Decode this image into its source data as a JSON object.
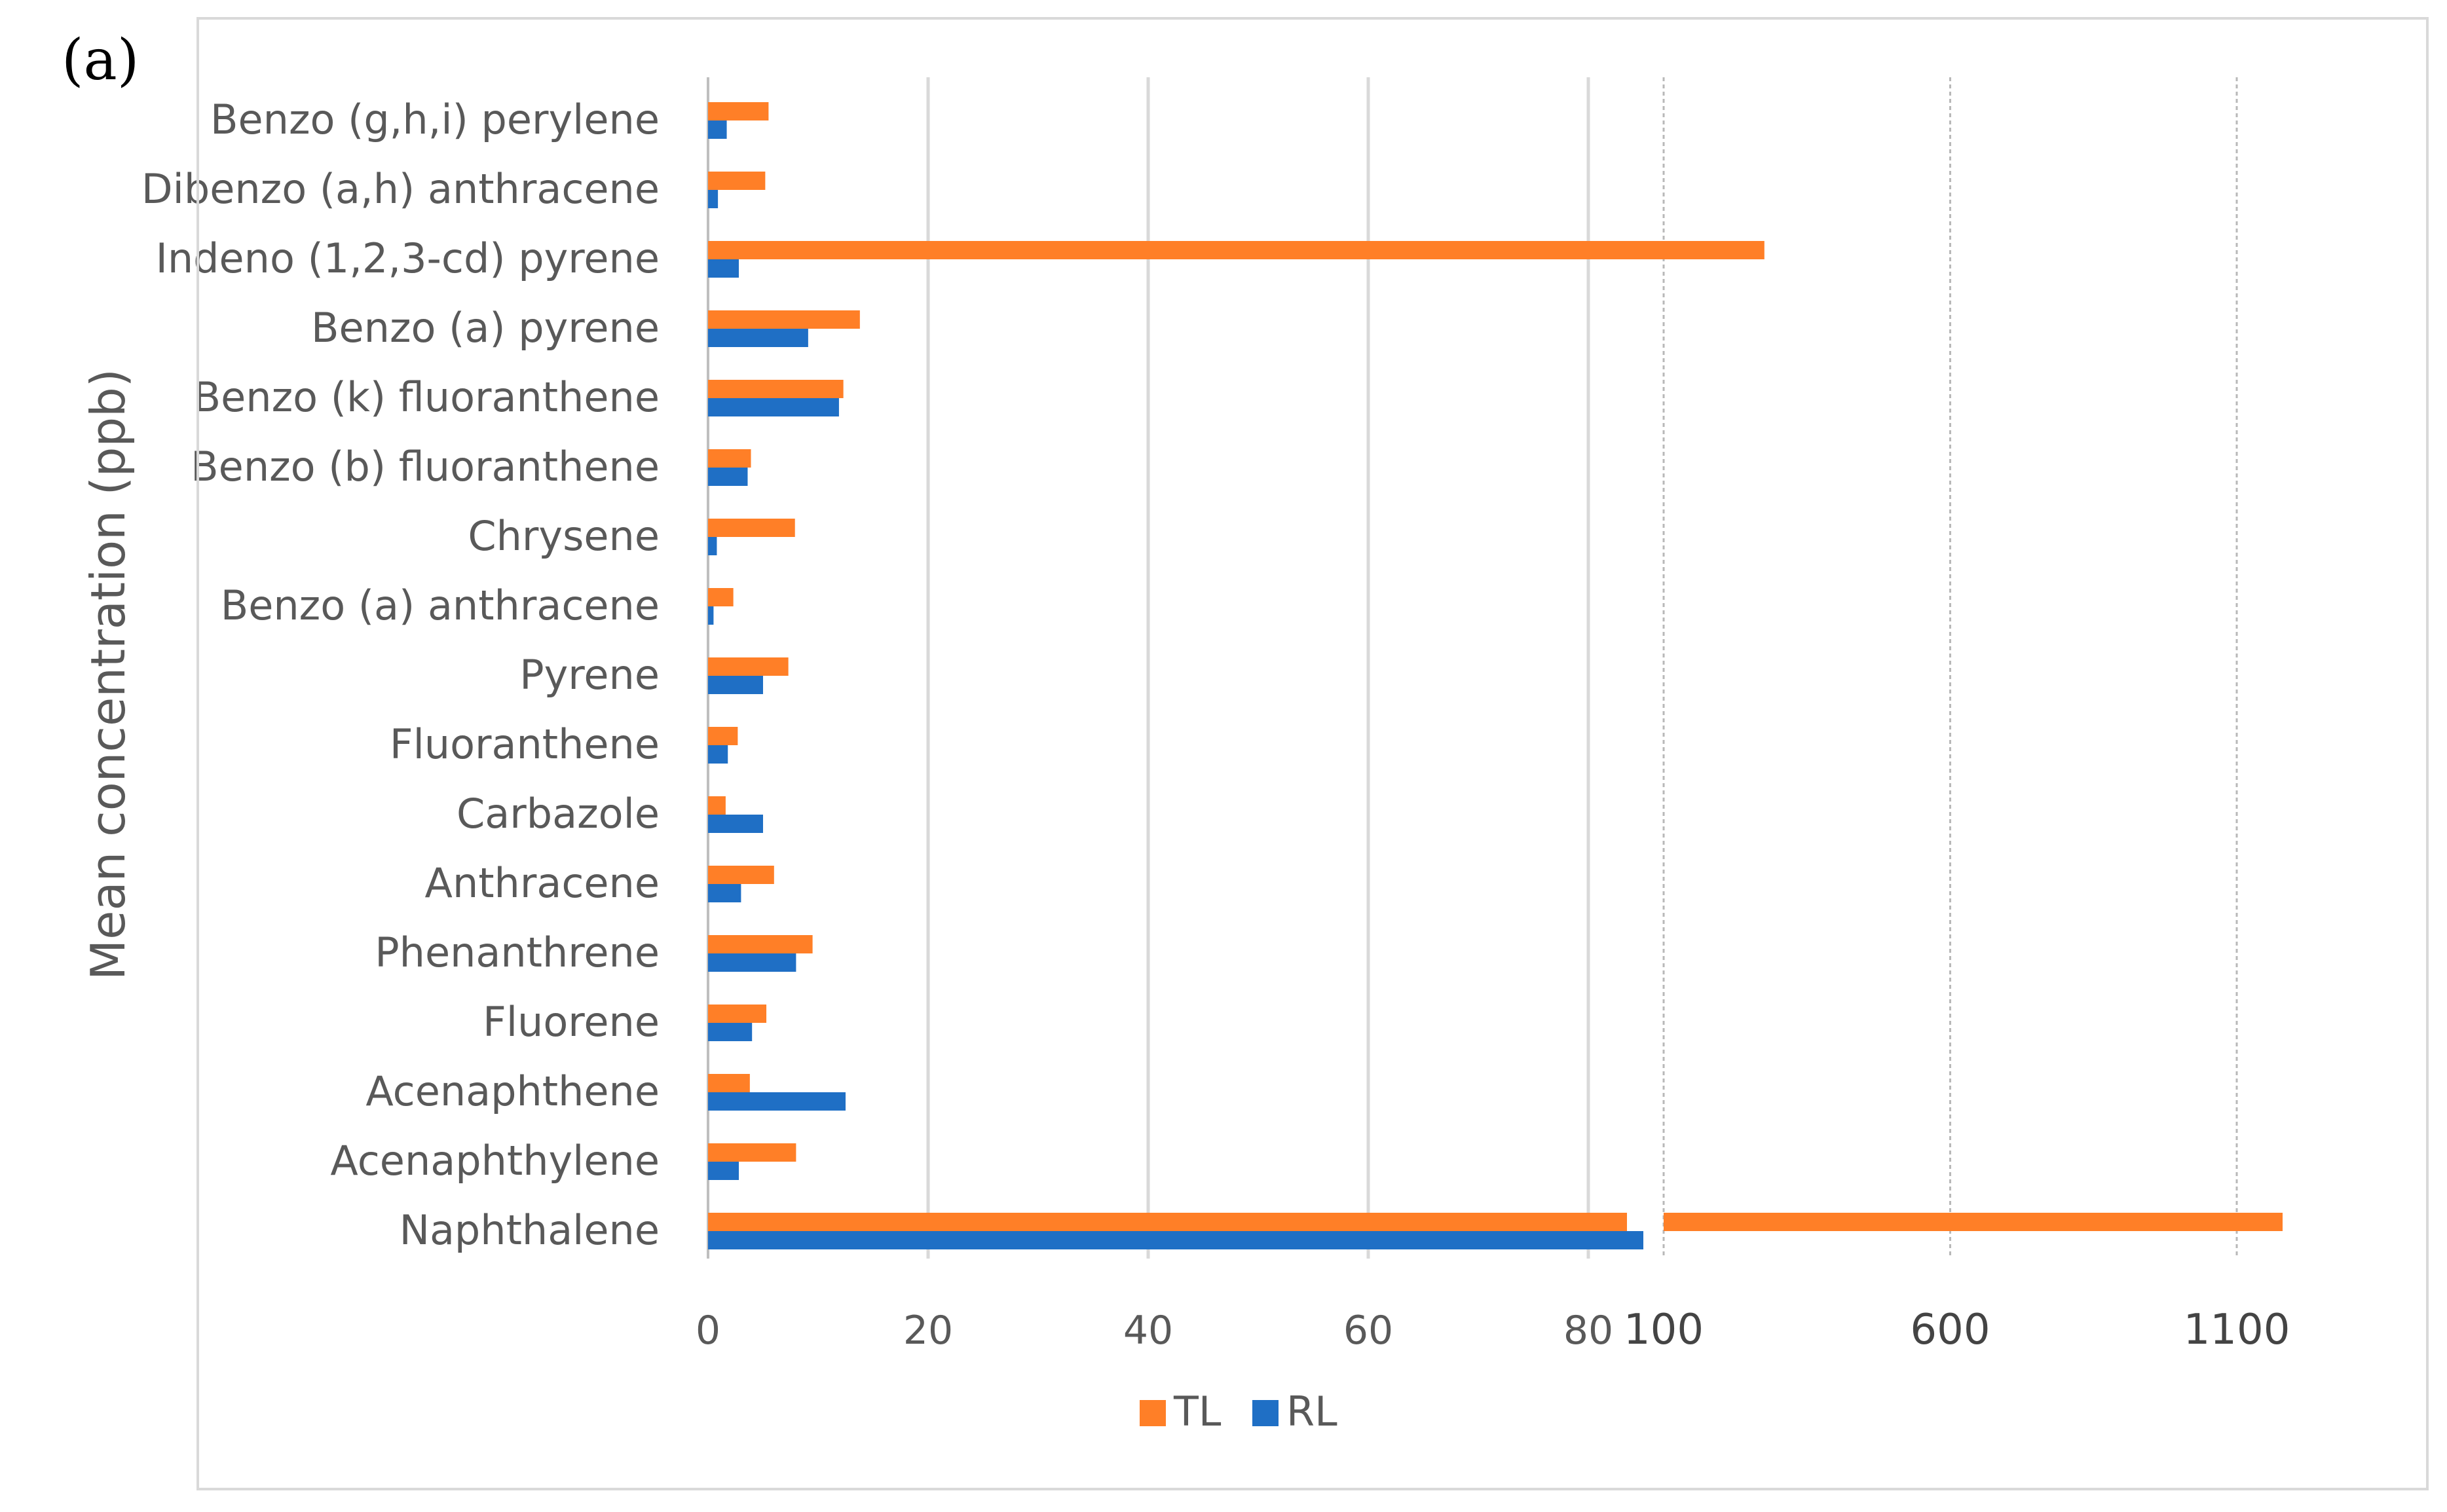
{
  "panel_label": "(a)",
  "colors": {
    "TL": "#ff7f27",
    "RL": "#1f6fc5",
    "grid": "#d9d9d9",
    "text": "#595959"
  },
  "chart_data": {
    "type": "bar",
    "orientation": "horizontal",
    "ylabel": "Mean concentration (ppb)",
    "xlabel": "",
    "categories": [
      "Benzo (g,h,i) perylene",
      "Dibenzo (a,h) anthracene",
      "Indeno (1,2,3-cd) pyrene",
      "Benzo (a) pyrene",
      "Benzo (k) fluoranthene",
      "Benzo (b) fluoranthene",
      "Chrysene",
      "Benzo (a) anthracene",
      "Pyrene",
      "Fluoranthene",
      "Carbazole",
      "Anthracene",
      "Phenanthrene",
      "Fluorene",
      "Acenaphthene",
      "Acenaphthylene",
      "Naphthalene"
    ],
    "series": [
      {
        "name": "TL",
        "values": [
          5.5,
          5.2,
          96,
          13.8,
          12.3,
          3.9,
          7.9,
          2.3,
          7.3,
          2.7,
          1.6,
          6.0,
          9.5,
          5.3,
          3.8,
          8.0,
          1180
        ]
      },
      {
        "name": "RL",
        "values": [
          1.7,
          0.9,
          2.8,
          9.1,
          11.9,
          3.6,
          0.8,
          0.5,
          5.0,
          1.8,
          5.0,
          3.0,
          8.0,
          4.0,
          12.5,
          2.8,
          85
        ]
      }
    ],
    "axis_segments": [
      {
        "range": [
          0,
          100
        ],
        "ticks": [
          0,
          20,
          40,
          60,
          80
        ]
      },
      {
        "range": [
          100,
          1200
        ],
        "ticks": [
          100,
          600,
          1100
        ]
      }
    ],
    "tick_labels": [
      "0",
      "20",
      "40",
      "60",
      "80",
      "100",
      "600",
      "1100"
    ],
    "legend": {
      "position": "bottom",
      "entries": [
        "TL",
        "RL"
      ]
    },
    "grid": true
  }
}
